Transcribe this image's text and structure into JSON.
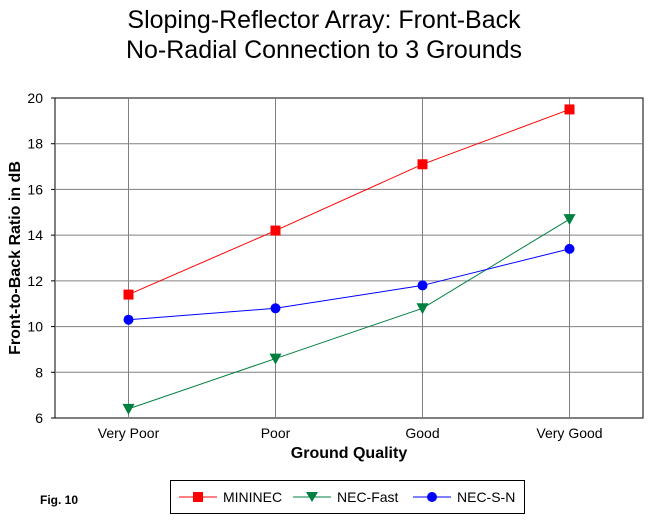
{
  "chart_data": {
    "type": "line",
    "title": "Sloping-Reflector Array:  Front-Back",
    "subtitle": "No-Radial Connection to 3 Grounds",
    "xlabel": "Ground Quality",
    "ylabel": "Front-to-Back Ratio in dB",
    "categories": [
      "Very Poor",
      "Poor",
      "Good",
      "Very Good"
    ],
    "ylim": [
      6,
      20
    ],
    "yticks": [
      6,
      8,
      10,
      12,
      14,
      16,
      18,
      20
    ],
    "grid": true,
    "legend_position": "bottom",
    "series": [
      {
        "name": "MININEC",
        "values": [
          11.4,
          14.2,
          17.1,
          19.5
        ],
        "color": "#ff0000",
        "marker": "square"
      },
      {
        "name": "NEC-Fast",
        "values": [
          6.4,
          8.6,
          10.8,
          14.7
        ],
        "color": "#008040",
        "marker": "triangle-down"
      },
      {
        "name": "NEC-S-N",
        "values": [
          10.3,
          10.8,
          11.8,
          13.4
        ],
        "color": "#0000ff",
        "marker": "circle"
      }
    ]
  },
  "figure_label": "Fig. 10"
}
